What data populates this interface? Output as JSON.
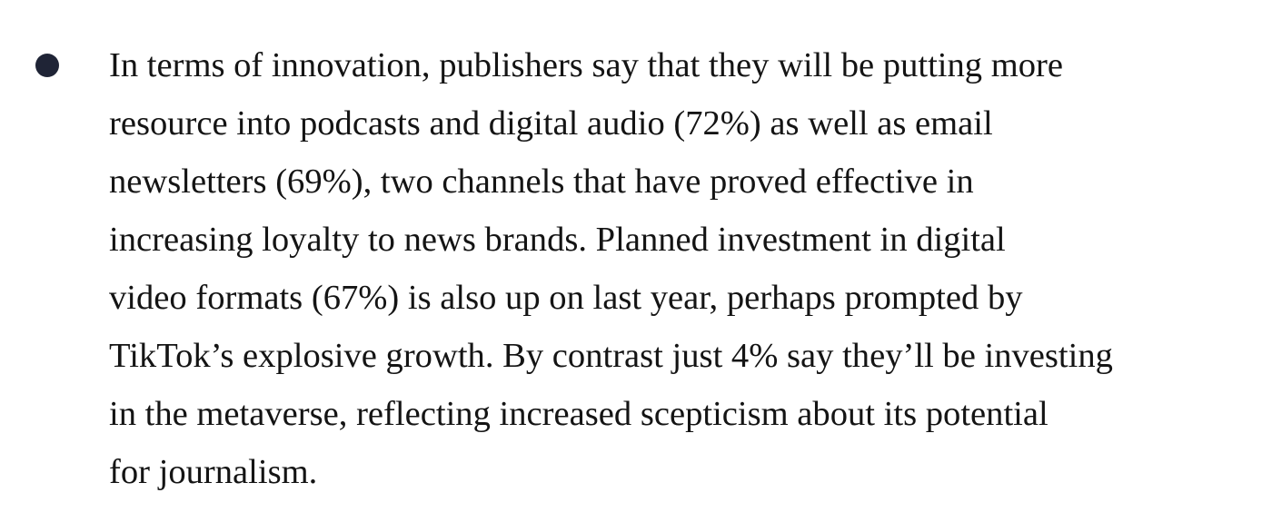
{
  "paragraph": {
    "lines": [
      "In terms of innovation, publishers say that they will be putting more",
      "resource into podcasts and digital audio (72%) as well as email",
      "newsletters (69%), two channels that have proved effective in",
      "increasing loyalty to news brands. Planned investment in digital",
      "video formats (67%) is also up on last year, perhaps prompted by",
      "TikTok’s explosive growth. By contrast just 4% say they’ll be investing",
      "in the metaverse, reflecting increased scepticism about its potential",
      "for journalism."
    ]
  },
  "colors": {
    "text": "#141414",
    "bullet": "#1f2436",
    "background": "#ffffff"
  }
}
